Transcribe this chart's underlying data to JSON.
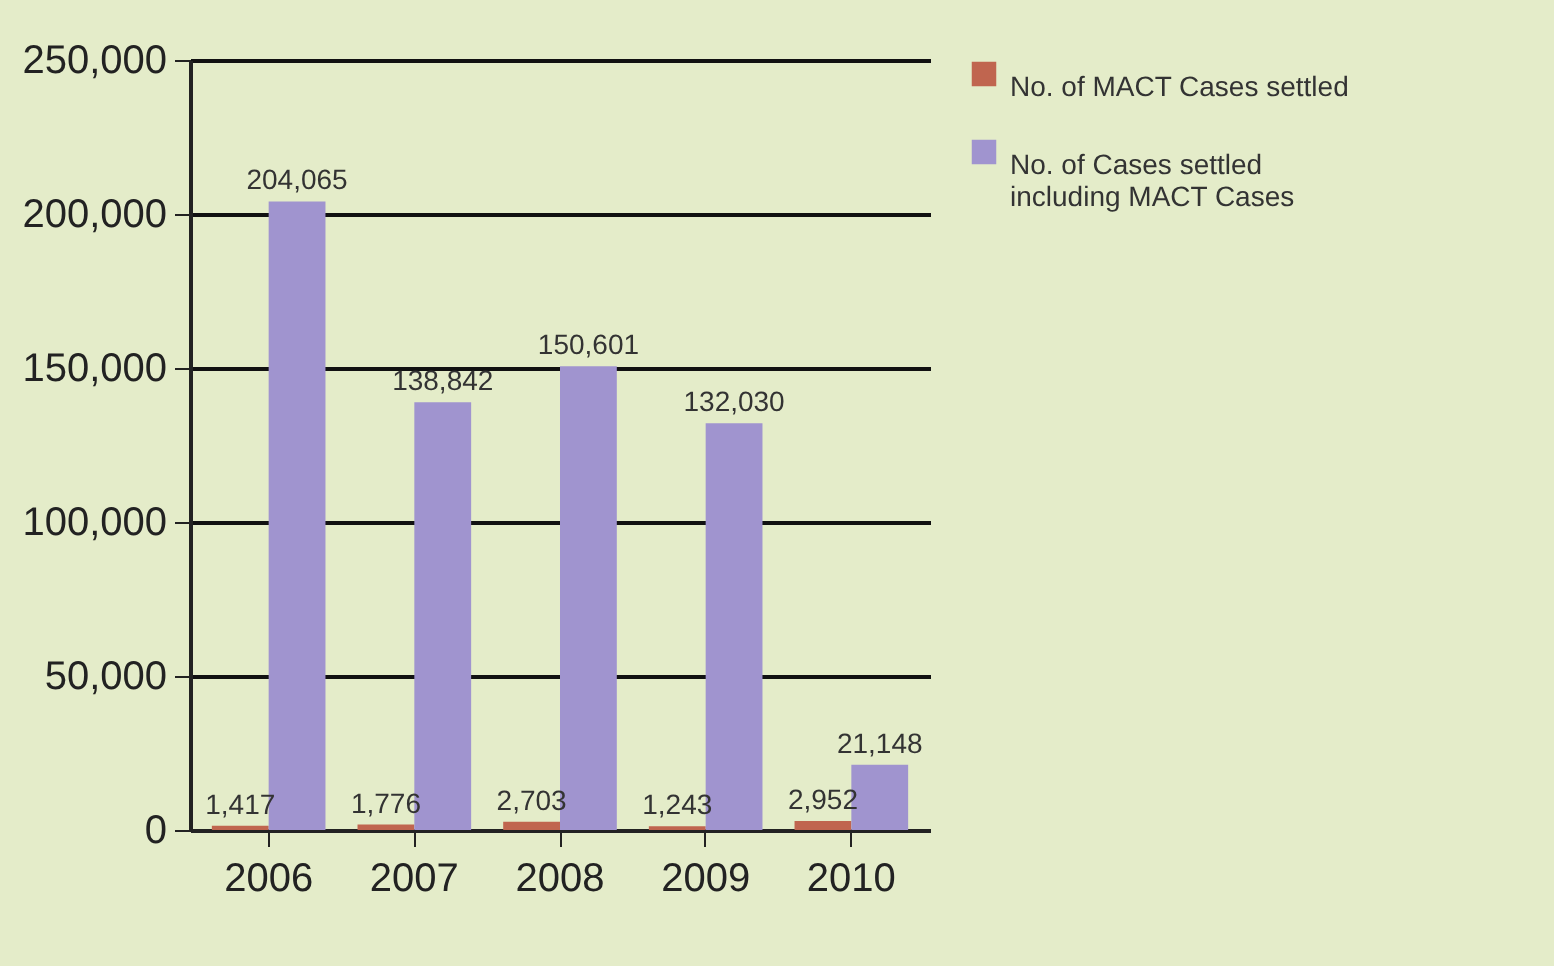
{
  "chart_data": {
    "type": "bar",
    "categories": [
      "2006",
      "2007",
      "2008",
      "2009",
      "2010"
    ],
    "series": [
      {
        "name": "No. of MACT Cases settled",
        "color": "#c0654f",
        "values": [
          1417,
          1776,
          2703,
          1243,
          2952
        ],
        "value_labels": [
          "1,417",
          "1,776",
          "2,703",
          "1,243",
          "2,952"
        ]
      },
      {
        "name": "No. of Cases settled including MACT Cases",
        "color": "#a094cf",
        "values": [
          204065,
          138842,
          150601,
          132030,
          21148
        ],
        "value_labels": [
          "204,065",
          "138,842",
          "150,601",
          "132,030",
          "21,148"
        ]
      }
    ],
    "ylim": [
      0,
      250000
    ],
    "yticks": [
      {
        "value": 0,
        "label": "0"
      },
      {
        "value": 50000,
        "label": "50,000"
      },
      {
        "value": 100000,
        "label": "100,000"
      },
      {
        "value": 150000,
        "label": "150,000"
      },
      {
        "value": 200000,
        "label": "200,000"
      },
      {
        "value": 250000,
        "label": "250,000"
      }
    ],
    "grid": "y",
    "legend": "right"
  }
}
